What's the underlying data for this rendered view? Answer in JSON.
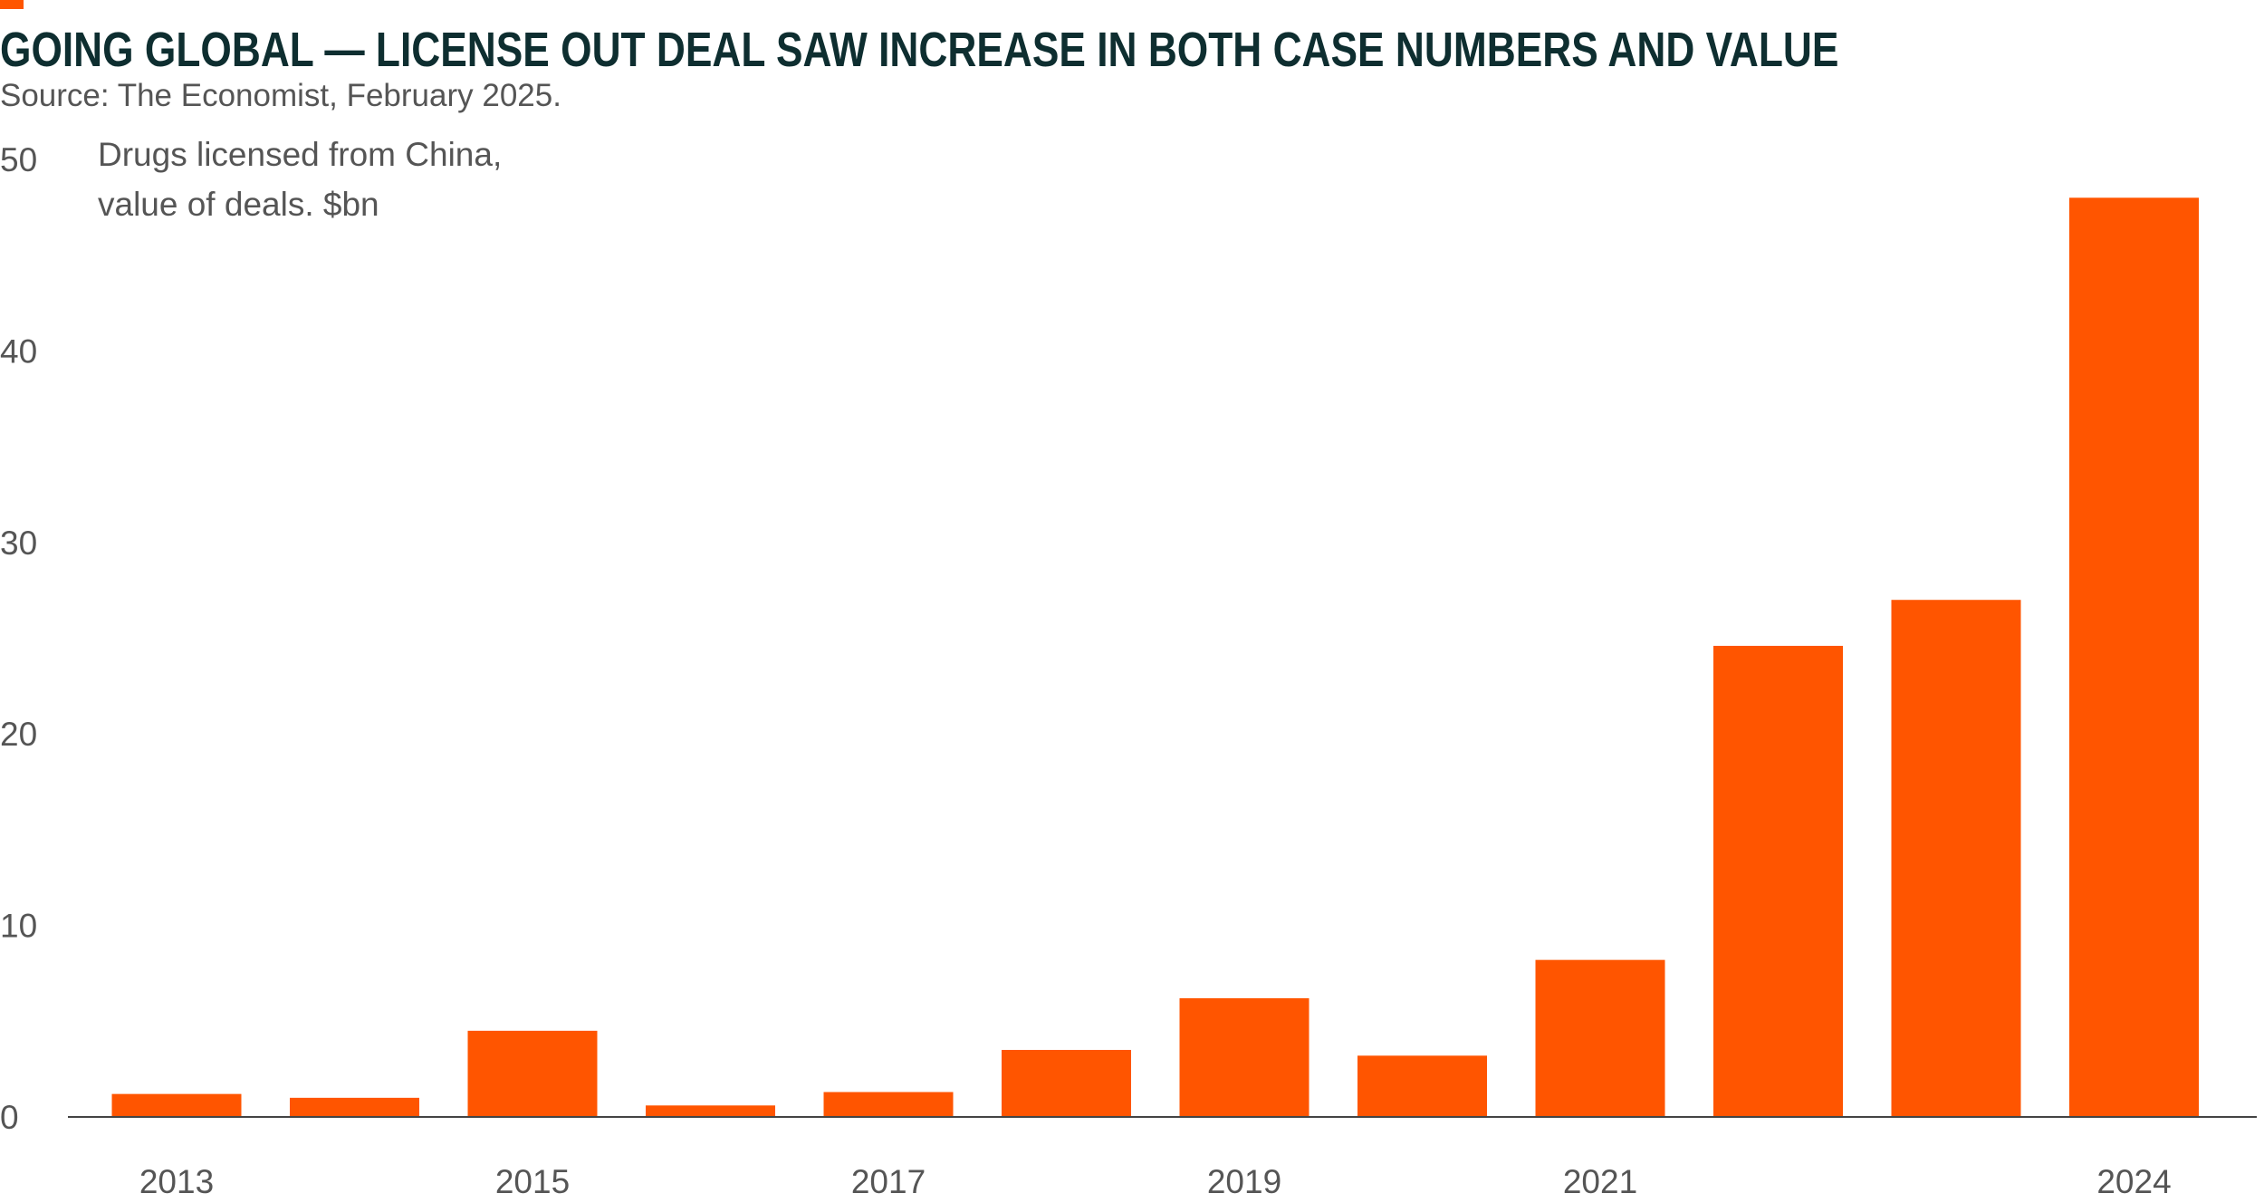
{
  "title": "GOING GLOBAL — LICENSE OUT DEAL SAW INCREASE IN BOTH CASE NUMBERS AND VALUE",
  "source": "Source: The Economist, February 2025.",
  "colors": {
    "accent": "#FF5500",
    "bar": "#FF5500",
    "title": "#0E2E30",
    "text": "#555555",
    "axis": "#444444"
  },
  "chart_data": {
    "type": "bar",
    "title": "GOING GLOBAL — LICENSE OUT DEAL SAW INCREASE IN BOTH CASE NUMBERS AND VALUE",
    "annotation": [
      "Drugs licensed from China,",
      "value of deals. $bn"
    ],
    "categories": [
      "2013",
      "2014",
      "2015",
      "2016",
      "2017",
      "2018",
      "2019",
      "2020",
      "2021",
      "2022",
      "2023",
      "2024"
    ],
    "x_tick_labels": [
      "2013",
      "",
      "2015",
      "",
      "2017",
      "",
      "2019",
      "",
      "2021",
      "",
      "",
      "2024"
    ],
    "values": [
      1.2,
      1.0,
      4.5,
      0.6,
      1.3,
      3.5,
      6.2,
      3.2,
      8.2,
      24.6,
      27.0,
      48.0
    ],
    "ylim": [
      0,
      50
    ],
    "y_ticks": [
      0,
      10,
      20,
      30,
      40,
      50
    ],
    "xlabel": "",
    "ylabel": "",
    "grid": false,
    "legend": "none"
  }
}
